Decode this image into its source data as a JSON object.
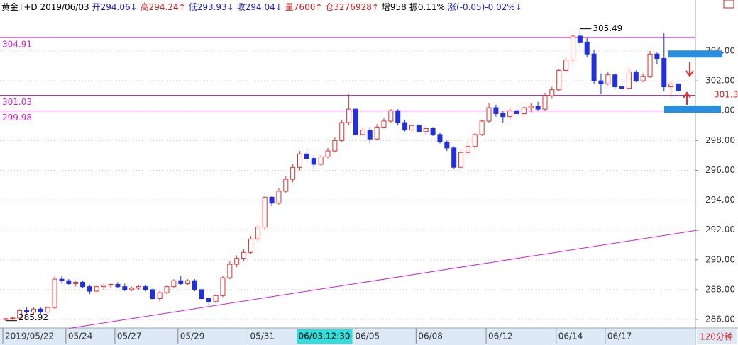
{
  "chart_data": {
    "type": "candlestick",
    "header": [
      {
        "text": "黄金T+D 2019/06/03",
        "color": "#000000"
      },
      {
        "text": "开294.06↓",
        "color": "#2020d0"
      },
      {
        "text": "高294.24↑",
        "color": "#d02020"
      },
      {
        "text": "低293.93↓",
        "color": "#2020d0"
      },
      {
        "text": "收294.04↓",
        "color": "#2020d0"
      },
      {
        "text": "量7600↑",
        "color": "#d02020"
      },
      {
        "text": "仓3276928↑",
        "color": "#d02020"
      },
      {
        "text": "增958",
        "color": "#000000"
      },
      {
        "text": "振0.11%",
        "color": "#000000"
      },
      {
        "text": "涨(-0.05)-0.02%↓",
        "color": "#2020d0"
      }
    ],
    "period": "120分钟",
    "up_color": "#e03030",
    "down_color": "#2030e0",
    "ylim": [
      285.43,
      306.47
    ],
    "yticks": [
      {
        "value": 286,
        "label": "286.00"
      },
      {
        "value": 288,
        "label": "288.00"
      },
      {
        "value": 290,
        "label": "290.00"
      },
      {
        "value": 292,
        "label": "292.00"
      },
      {
        "value": 294,
        "label": "294.00"
      },
      {
        "value": 296,
        "label": "296.00"
      },
      {
        "value": 298,
        "label": "298.00"
      },
      {
        "value": 300,
        "label": "300.00"
      },
      {
        "value": 302,
        "label": "302.00"
      },
      {
        "value": 304,
        "label": "304.00"
      }
    ],
    "grid": true,
    "xticks": [
      {
        "value": 0,
        "label": "2019/05/22"
      },
      {
        "value": 9,
        "label": "05/24"
      },
      {
        "value": 16,
        "label": "05/27"
      },
      {
        "value": 25,
        "label": "05/29"
      },
      {
        "value": 35,
        "label": "05/31"
      },
      {
        "value": 50,
        "label": "06/05"
      },
      {
        "value": 59,
        "label": "06/08"
      },
      {
        "value": 69,
        "label": "06/12"
      },
      {
        "value": 79,
        "label": "06/14"
      },
      {
        "value": 86,
        "label": "06/17"
      }
    ],
    "cursor": {
      "value": 42,
      "label": "06/03,12:30"
    },
    "hlines": [
      304.91,
      301.03,
      299.98
    ],
    "hline_color": "#d020d0",
    "trendline": {
      "x": [
        9,
        99
      ],
      "y": [
        285.4,
        292.0
      ]
    },
    "levels": [
      303.8,
      300.1
    ],
    "ohlc": [
      [
        286.0,
        286.1,
        285.92,
        286.05
      ],
      [
        286.05,
        286.2,
        285.95,
        286.1
      ],
      [
        286.1,
        286.7,
        286.0,
        286.6
      ],
      [
        286.6,
        286.8,
        286.4,
        286.5
      ],
      [
        286.5,
        286.8,
        286.3,
        286.7
      ],
      [
        286.7,
        286.8,
        286.4,
        286.5
      ],
      [
        286.5,
        286.9,
        286.4,
        286.8
      ],
      [
        286.8,
        288.9,
        286.7,
        288.7
      ],
      [
        288.7,
        288.9,
        288.4,
        288.6
      ],
      [
        288.6,
        288.7,
        288.3,
        288.4
      ],
      [
        288.4,
        288.6,
        288.2,
        288.5
      ],
      [
        288.5,
        288.6,
        288.1,
        288.2
      ],
      [
        288.2,
        288.3,
        287.7,
        287.9
      ],
      [
        287.9,
        288.3,
        287.8,
        288.2
      ],
      [
        288.2,
        288.4,
        288.0,
        288.3
      ],
      [
        288.3,
        288.4,
        288.1,
        288.35
      ],
      [
        288.35,
        288.5,
        288.1,
        288.2
      ],
      [
        288.2,
        288.4,
        287.9,
        288.0
      ],
      [
        288.0,
        288.2,
        287.9,
        288.1
      ],
      [
        288.1,
        288.3,
        288.0,
        288.2
      ],
      [
        288.2,
        288.3,
        287.9,
        288.0
      ],
      [
        288.0,
        288.1,
        287.3,
        287.4
      ],
      [
        287.4,
        287.9,
        287.2,
        287.8
      ],
      [
        287.8,
        288.3,
        287.7,
        288.2
      ],
      [
        288.2,
        288.7,
        288.1,
        288.6
      ],
      [
        288.6,
        288.9,
        288.3,
        288.4
      ],
      [
        288.4,
        288.7,
        288.3,
        288.6
      ],
      [
        288.6,
        288.7,
        287.9,
        288.0
      ],
      [
        288.0,
        288.1,
        287.3,
        287.4
      ],
      [
        287.4,
        287.5,
        287.0,
        287.2
      ],
      [
        287.2,
        287.7,
        287.1,
        287.6
      ],
      [
        287.6,
        288.9,
        287.5,
        288.8
      ],
      [
        288.8,
        289.9,
        288.7,
        289.7
      ],
      [
        289.7,
        290.3,
        289.5,
        290.1
      ],
      [
        290.1,
        290.7,
        289.9,
        290.5
      ],
      [
        290.5,
        291.6,
        290.4,
        291.4
      ],
      [
        291.4,
        292.4,
        291.2,
        292.2
      ],
      [
        292.2,
        294.3,
        292.0,
        294.2
      ],
      [
        294.2,
        294.3,
        293.6,
        293.8
      ],
      [
        293.8,
        294.8,
        293.7,
        294.6
      ],
      [
        294.6,
        295.6,
        294.5,
        295.4
      ],
      [
        295.4,
        296.4,
        295.2,
        296.2
      ],
      [
        296.2,
        297.3,
        296.0,
        297.1
      ],
      [
        297.1,
        297.4,
        296.6,
        296.8
      ],
      [
        296.8,
        297.0,
        296.1,
        296.4
      ],
      [
        296.4,
        297.0,
        296.3,
        296.9
      ],
      [
        296.9,
        297.5,
        296.8,
        297.3
      ],
      [
        297.3,
        298.2,
        297.2,
        298.0
      ],
      [
        298.0,
        299.4,
        297.9,
        299.2
      ],
      [
        299.2,
        301.1,
        299.0,
        300.1
      ],
      [
        300.1,
        300.2,
        298.2,
        298.4
      ],
      [
        298.4,
        298.9,
        298.3,
        298.7
      ],
      [
        298.7,
        298.9,
        297.8,
        298.1
      ],
      [
        298.1,
        299.1,
        298.0,
        298.9
      ],
      [
        298.9,
        299.5,
        298.8,
        299.3
      ],
      [
        299.3,
        300.1,
        299.2,
        300.0
      ],
      [
        300.0,
        300.1,
        299.0,
        299.2
      ],
      [
        299.2,
        299.4,
        298.6,
        298.7
      ],
      [
        298.7,
        299.1,
        298.5,
        299.0
      ],
      [
        299.0,
        299.1,
        298.5,
        298.6
      ],
      [
        298.6,
        298.9,
        298.4,
        298.8
      ],
      [
        298.8,
        298.9,
        298.3,
        298.4
      ],
      [
        298.4,
        298.5,
        297.8,
        297.9
      ],
      [
        297.9,
        298.0,
        297.3,
        297.5
      ],
      [
        297.5,
        297.6,
        296.1,
        296.2
      ],
      [
        296.2,
        297.4,
        296.1,
        297.2
      ],
      [
        297.2,
        297.9,
        297.0,
        297.6
      ],
      [
        297.6,
        298.5,
        297.5,
        298.4
      ],
      [
        298.4,
        299.4,
        298.3,
        299.3
      ],
      [
        299.3,
        300.5,
        299.2,
        300.2
      ],
      [
        300.2,
        300.4,
        299.6,
        299.8
      ],
      [
        299.8,
        300.0,
        299.2,
        299.6
      ],
      [
        299.6,
        300.2,
        299.4,
        300.0
      ],
      [
        300.0,
        300.4,
        299.7,
        299.8
      ],
      [
        299.8,
        300.3,
        299.6,
        300.2
      ],
      [
        300.2,
        300.5,
        299.9,
        300.3
      ],
      [
        300.3,
        300.6,
        300.0,
        300.1
      ],
      [
        300.1,
        301.2,
        300.0,
        301.0
      ],
      [
        301.0,
        301.6,
        300.8,
        301.4
      ],
      [
        301.4,
        302.8,
        301.3,
        302.7
      ],
      [
        302.7,
        303.6,
        302.5,
        303.4
      ],
      [
        303.4,
        305.2,
        303.2,
        305.0
      ],
      [
        305.0,
        305.49,
        304.3,
        304.6
      ],
      [
        304.6,
        304.9,
        303.6,
        303.8
      ],
      [
        303.8,
        304.1,
        301.8,
        302.0
      ],
      [
        302.0,
        302.5,
        301.1,
        301.8
      ],
      [
        301.8,
        302.6,
        301.7,
        302.4
      ],
      [
        302.4,
        302.5,
        301.4,
        301.6
      ],
      [
        301.6,
        302.0,
        301.3,
        301.5
      ],
      [
        301.5,
        302.9,
        301.4,
        302.6
      ],
      [
        302.6,
        302.7,
        301.9,
        302.0
      ],
      [
        302.0,
        302.5,
        301.9,
        302.3
      ],
      [
        302.3,
        304.0,
        302.2,
        303.8
      ],
      [
        303.8,
        303.9,
        303.1,
        303.5
      ],
      [
        303.5,
        305.2,
        301.3,
        301.6
      ],
      [
        301.6,
        302.0,
        300.9,
        301.8
      ],
      [
        301.8,
        301.9,
        301.2,
        301.35
      ]
    ]
  }
}
